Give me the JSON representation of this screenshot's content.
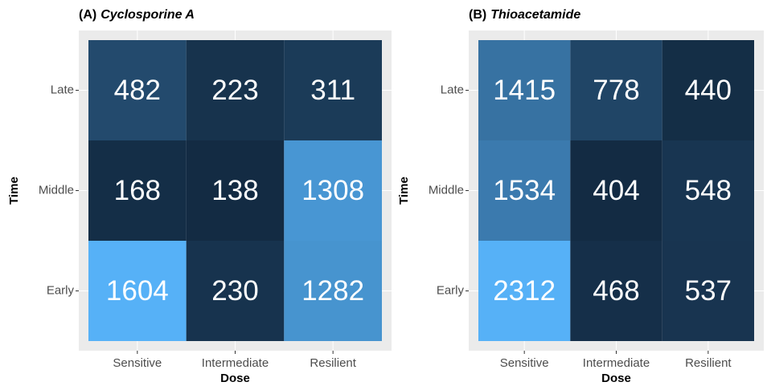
{
  "chart_data": [
    {
      "type": "heatmap",
      "tag": "(A)",
      "title": "Cyclosporine A",
      "x_label": "Dose",
      "y_label": "Time",
      "x_categories": [
        "Sensitive",
        "Intermediate",
        "Resilient"
      ],
      "y_categories": [
        "Early",
        "Middle",
        "Late"
      ],
      "values": [
        [
          1604,
          230,
          1282
        ],
        [
          168,
          138,
          1308
        ],
        [
          482,
          223,
          311
        ]
      ],
      "low_color": "#132B43",
      "high_color": "#56B1F7"
    },
    {
      "type": "heatmap",
      "tag": "(B)",
      "title": "Thioacetamide",
      "x_label": "Dose",
      "y_label": "Time",
      "x_categories": [
        "Sensitive",
        "Intermediate",
        "Resilient"
      ],
      "y_categories": [
        "Early",
        "Middle",
        "Late"
      ],
      "values": [
        [
          2312,
          468,
          537
        ],
        [
          1534,
          404,
          548
        ],
        [
          1415,
          778,
          440
        ]
      ],
      "low_color": "#132B43",
      "high_color": "#56B1F7"
    }
  ]
}
